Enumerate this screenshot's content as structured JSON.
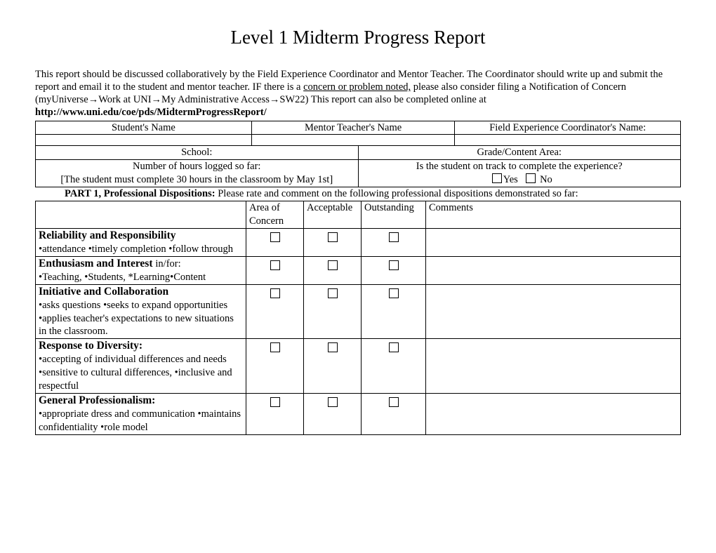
{
  "title": "Level 1 Midterm Progress Report",
  "intro": {
    "p1a": "This report should be discussed collaboratively by the Field Experience Coordinator and Mentor Teacher.  The Coordinator should  write up and submit the report and email it to the student and mentor teacher. IF there is a ",
    "p1u": "concern or problem noted,",
    "p1b": " please also consider filing a Notification of Concern (myUniverse",
    "p1c": "Work at UNI",
    "p1d": "My Administrative Access",
    "p1e": "SW22) This report can also be completed online at ",
    "url": "http://www.uni.edu/coe/pds/MidtermProgressReport/"
  },
  "header_table": {
    "c1": "Student's Name",
    "c2": "Mentor Teacher's Name",
    "c3": "Field Experience Coordinator's Name:",
    "r2c1": "School:",
    "r2c2": "Grade/Content Area:",
    "r3c1": "Number of hours logged so far:",
    "r3c2": "Is the student on track to complete the experience?",
    "r4c1": "[The student must complete 30 hours in the classroom by May 1st]",
    "yes": "Yes",
    "no": "No"
  },
  "part1": {
    "label": "PART 1, Professional Dispositions:",
    "desc": " Please rate and comment on the following professional dispositions demonstrated so far:",
    "cols": {
      "area": "Area of Concern",
      "acc": "Acceptable",
      "out": "Outstanding",
      "com": "Comments"
    }
  },
  "rows": [
    {
      "title": "Reliability and Responsibility",
      "sub": "•attendance •timely completion •follow through"
    },
    {
      "title": "Enthusiasm and Interest ",
      "title_suffix": "in/for:",
      "sub": "•Teaching, •Students, *Learning•Content"
    },
    {
      "title": "Initiative and Collaboration",
      "sub": "•asks questions  •seeks to expand opportunities •applies teacher's expectations to new situations in the classroom."
    },
    {
      "title": "Response to Diversity:",
      "sub": "•accepting of individual differences and needs •sensitive to cultural differences, •inclusive and respectful"
    },
    {
      "title": "General Professionalism:",
      "sub": "•appropriate dress  and communication •maintains confidentiality •role model"
    }
  ]
}
